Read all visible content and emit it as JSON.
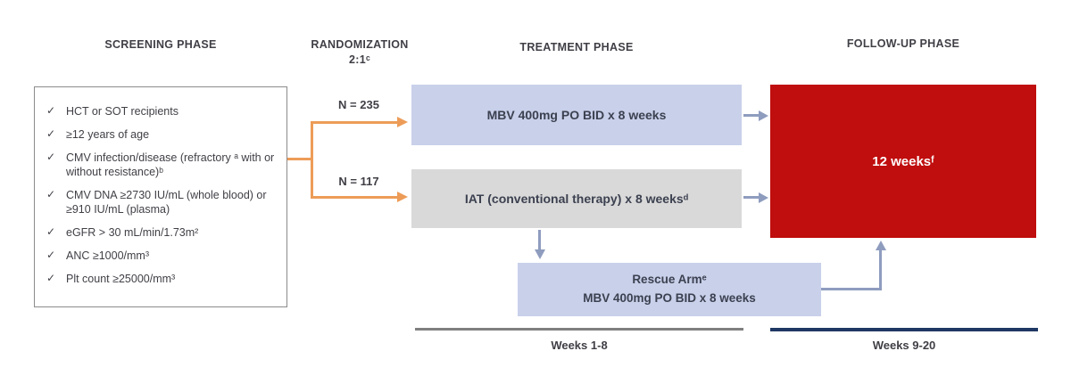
{
  "headers": {
    "screening": "SCREENING PHASE",
    "randomization_line1": "RANDOMIZATION",
    "randomization_line2": "2:1ᶜ",
    "treatment": "TREATMENT PHASE",
    "followup": "FOLLOW-UP PHASE"
  },
  "screening": {
    "check_glyph": "✓",
    "items": [
      "HCT or SOT recipients",
      "≥12 years of age",
      "CMV infection/disease (refractory ᵃ with or without resistance)ᵇ",
      "CMV DNA ≥2730 IU/mL (whole blood) or ≥910 IU/mL (plasma)",
      "eGFR > 30 mL/min/1.73m²",
      "ANC ≥1000/mm³",
      "Plt count ≥25000/mm³"
    ]
  },
  "randomization": {
    "ratio": "2:1",
    "arm1_n": "N = 235",
    "arm2_n": "N = 117"
  },
  "treatment": {
    "mbv_box_label": "MBV 400mg PO BID x 8 weeks",
    "iat_box_label": "IAT (conventional therapy) x 8 weeksᵈ",
    "rescue_line1": "Rescue Armᵉ",
    "rescue_line2": "MBV 400mg PO BID x 8 weeks"
  },
  "followup": {
    "box_label": "12 weeksᶠ"
  },
  "timeline": {
    "weeks_1_8": "Weeks 1-8",
    "weeks_9_20": "Weeks 9-20"
  },
  "colors": {
    "orange_arrow": "#ED9C58",
    "bluegray_arrow": "#8E9CBE",
    "light_blue_box": "#C8D0EA",
    "gray_box": "#D9D9D9",
    "red_box": "#C00D0D",
    "navy_line": "#1F3864",
    "gray_line": "#7F7F7F",
    "box_border": "#8C8C8C",
    "text": "#3F3F46"
  }
}
